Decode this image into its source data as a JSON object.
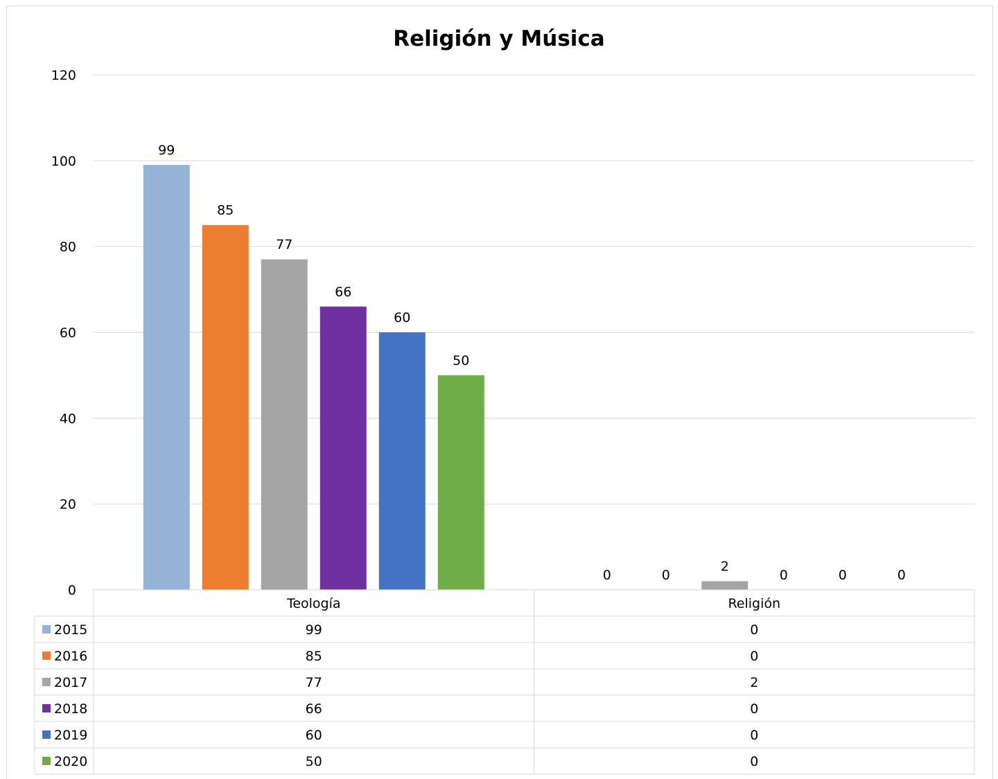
{
  "chart_data": {
    "type": "bar",
    "title": "Religión y Música",
    "categories": [
      "Teología",
      "Religión"
    ],
    "series": [
      {
        "name": "2015",
        "color": "#95b3d7",
        "values": [
          99,
          0
        ]
      },
      {
        "name": "2016",
        "color": "#ed7d31",
        "values": [
          85,
          0
        ]
      },
      {
        "name": "2017",
        "color": "#a5a5a5",
        "values": [
          77,
          2
        ]
      },
      {
        "name": "2018",
        "color": "#7030a0",
        "values": [
          66,
          0
        ]
      },
      {
        "name": "2019",
        "color": "#4472c4",
        "values": [
          60,
          0
        ]
      },
      {
        "name": "2020",
        "color": "#70ad47",
        "values": [
          50,
          0
        ]
      }
    ],
    "ylim": [
      0,
      120
    ],
    "yticks": [
      0,
      20,
      40,
      60,
      80,
      100,
      120
    ],
    "grid": true,
    "data_labels": true,
    "legend": "data-table"
  }
}
